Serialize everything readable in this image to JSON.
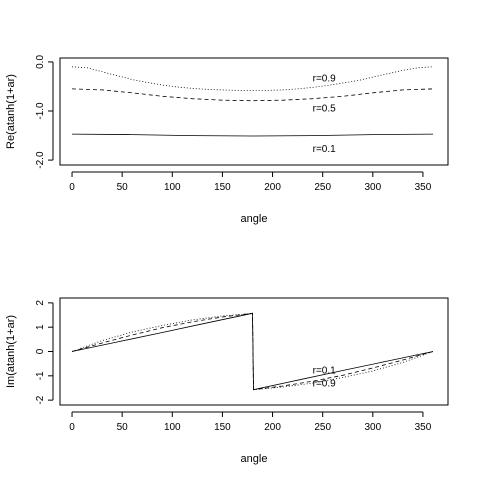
{
  "chart_data": [
    {
      "type": "line",
      "title": "",
      "xlabel": "angle",
      "ylabel": "Re(atanh(1+ar)",
      "xlim": [
        -12,
        375
      ],
      "ylim": [
        -2.1,
        0.08
      ],
      "xticks": [
        0,
        50,
        100,
        150,
        200,
        250,
        300,
        350
      ],
      "yticks": [
        0.0,
        -1.0,
        -2.0
      ],
      "ytick_labels": [
        "0.0",
        "-1.0",
        "-2.0"
      ],
      "grid": false,
      "series": [
        {
          "name": "r=0.9",
          "style": "dotted",
          "label_at": [
            240,
            -0.32
          ],
          "x": [
            0,
            15,
            30,
            45,
            60,
            75,
            90,
            105,
            120,
            135,
            150,
            165,
            180,
            195,
            210,
            225,
            240,
            255,
            270,
            285,
            300,
            315,
            330,
            345,
            360
          ],
          "y": [
            -0.1,
            -0.12,
            -0.2,
            -0.28,
            -0.36,
            -0.42,
            -0.47,
            -0.51,
            -0.54,
            -0.56,
            -0.57,
            -0.58,
            -0.58,
            -0.58,
            -0.57,
            -0.55,
            -0.52,
            -0.48,
            -0.43,
            -0.38,
            -0.31,
            -0.24,
            -0.17,
            -0.12,
            -0.1
          ]
        },
        {
          "name": "r=0.5",
          "style": "dashed",
          "label_at": [
            240,
            -0.93
          ],
          "x": [
            0,
            30,
            60,
            90,
            120,
            150,
            180,
            210,
            240,
            270,
            300,
            330,
            360
          ],
          "y": [
            -0.55,
            -0.57,
            -0.63,
            -0.7,
            -0.75,
            -0.78,
            -0.79,
            -0.78,
            -0.75,
            -0.7,
            -0.63,
            -0.57,
            -0.55
          ]
        },
        {
          "name": "r=0.1",
          "style": "solid",
          "label_at": [
            240,
            -1.75
          ],
          "x": [
            0,
            60,
            120,
            180,
            240,
            300,
            360
          ],
          "y": [
            -1.47,
            -1.48,
            -1.5,
            -1.51,
            -1.5,
            -1.48,
            -1.47
          ]
        }
      ]
    },
    {
      "type": "line",
      "title": "",
      "xlabel": "angle",
      "ylabel": "Im(atanh(1+ar)",
      "xlim": [
        -12,
        375
      ],
      "ylim": [
        -2.2,
        2.2
      ],
      "xticks": [
        0,
        50,
        100,
        150,
        200,
        250,
        300,
        350
      ],
      "yticks": [
        2,
        1,
        0,
        -1,
        -2
      ],
      "ytick_labels": [
        "2",
        "1",
        "0",
        "-1",
        "-2"
      ],
      "grid": false,
      "series": [
        {
          "name": "r=0.1",
          "style": "solid",
          "label_at": [
            240,
            -0.75
          ],
          "x": [
            0,
            45,
            90,
            135,
            180,
            181,
            225,
            270,
            315,
            360
          ],
          "y": [
            0.0,
            0.39,
            0.78,
            1.18,
            1.57,
            -1.57,
            -1.18,
            -0.78,
            -0.39,
            0.0
          ]
        },
        {
          "name": "r=0.5",
          "style": "dashed",
          "x": [
            0,
            30,
            60,
            90,
            120,
            150,
            180,
            181,
            210,
            240,
            270,
            300,
            330,
            360
          ],
          "y": [
            0.0,
            0.35,
            0.68,
            0.98,
            1.22,
            1.42,
            1.57,
            -1.57,
            -1.42,
            -1.22,
            -0.98,
            -0.68,
            -0.35,
            0.0
          ]
        },
        {
          "name": "r=0.9",
          "style": "dotted",
          "label_at": [
            240,
            -1.27
          ],
          "x": [
            0,
            30,
            60,
            90,
            120,
            150,
            180,
            181,
            210,
            240,
            270,
            300,
            330,
            360
          ],
          "y": [
            0.0,
            0.45,
            0.8,
            1.07,
            1.3,
            1.46,
            1.57,
            -1.57,
            -1.46,
            -1.3,
            -1.07,
            -0.8,
            -0.45,
            0.0
          ]
        }
      ]
    }
  ]
}
